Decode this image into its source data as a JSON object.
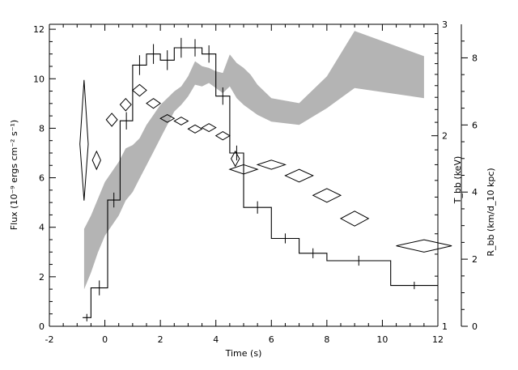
{
  "chart_data": {
    "type": "line",
    "xlabel": "Time (s)",
    "xlim": [
      -2,
      12
    ],
    "x_ticks": [
      -2,
      0,
      2,
      4,
      6,
      8,
      10,
      12
    ],
    "left_axis": {
      "label": "Flux (10⁻⁹ ergs cm⁻² s⁻¹)",
      "ylim": [
        0,
        12.2
      ],
      "ticks": [
        0,
        2,
        4,
        6,
        8,
        10,
        12
      ]
    },
    "tbb_axis": {
      "label": "T_bb (keV)",
      "scale": "log",
      "ylim": [
        1,
        3
      ],
      "ticks": [
        1,
        2,
        3
      ]
    },
    "rbb_axis": {
      "label": "R_bb (km/d_10 kpc)",
      "ylim": [
        0,
        9
      ],
      "ticks": [
        0,
        2,
        4,
        6,
        8
      ]
    },
    "series": [
      {
        "kind": "step",
        "axis": "left",
        "color": "#000000",
        "bins": [
          {
            "x0": -0.8,
            "x1": -0.5,
            "y": 0.35,
            "err": 0.15
          },
          {
            "x0": -0.5,
            "x1": 0.1,
            "y": 1.55,
            "err": 0.3
          },
          {
            "x0": 0.1,
            "x1": 0.55,
            "y": 5.1,
            "err": 0.3
          },
          {
            "x0": 0.55,
            "x1": 1.0,
            "y": 8.3,
            "err": 0.35
          },
          {
            "x0": 1.0,
            "x1": 1.5,
            "y": 10.55,
            "err": 0.4
          },
          {
            "x0": 1.5,
            "x1": 2.0,
            "y": 11.0,
            "err": 0.4
          },
          {
            "x0": 2.0,
            "x1": 2.5,
            "y": 10.75,
            "err": 0.4
          },
          {
            "x0": 2.5,
            "x1": 3.0,
            "y": 11.25,
            "err": 0.4
          },
          {
            "x0": 3.0,
            "x1": 3.5,
            "y": 11.25,
            "err": 0.35
          },
          {
            "x0": 3.5,
            "x1": 4.0,
            "y": 11.0,
            "err": 0.35
          },
          {
            "x0": 4.0,
            "x1": 4.5,
            "y": 9.3,
            "err": 0.35
          },
          {
            "x0": 4.5,
            "x1": 5.0,
            "y": 7.0,
            "err": 0.3
          },
          {
            "x0": 5.0,
            "x1": 6.0,
            "y": 4.8,
            "err": 0.25
          },
          {
            "x0": 6.0,
            "x1": 7.0,
            "y": 3.55,
            "err": 0.2
          },
          {
            "x0": 7.0,
            "x1": 8.0,
            "y": 2.95,
            "err": 0.2
          },
          {
            "x0": 8.0,
            "x1": 10.3,
            "y": 2.65,
            "err": 0.2
          },
          {
            "x0": 10.3,
            "x1": 12.0,
            "y": 1.65,
            "err": 0.15
          }
        ]
      },
      {
        "kind": "band",
        "axis": "rbb",
        "color": "#b4b4b4",
        "x": [
          -0.75,
          -0.5,
          -0.25,
          0.0,
          0.25,
          0.5,
          0.75,
          1.0,
          1.25,
          1.5,
          1.75,
          2.0,
          2.25,
          2.5,
          2.75,
          3.0,
          3.25,
          3.5,
          3.75,
          4.0,
          4.25,
          4.5,
          4.75,
          5.0,
          5.25,
          5.5,
          6.0,
          7.0,
          8.0,
          9.0,
          11.5
        ],
        "upper": [
          2.9,
          3.3,
          3.8,
          4.3,
          4.6,
          4.9,
          5.3,
          5.4,
          5.6,
          6.0,
          6.3,
          6.6,
          6.8,
          7.0,
          7.15,
          7.45,
          7.9,
          7.75,
          7.7,
          7.6,
          7.55,
          8.1,
          7.85,
          7.7,
          7.5,
          7.2,
          6.8,
          6.65,
          7.45,
          8.8,
          8.05
        ],
        "lower": [
          1.1,
          1.6,
          2.2,
          2.7,
          3.0,
          3.3,
          3.75,
          4.0,
          4.4,
          4.8,
          5.2,
          5.6,
          6.0,
          6.4,
          6.6,
          6.85,
          7.2,
          7.15,
          7.25,
          7.1,
          6.95,
          7.15,
          6.8,
          6.6,
          6.45,
          6.3,
          6.1,
          6.0,
          6.5,
          7.1,
          6.8
        ]
      },
      {
        "kind": "diamonds",
        "axis": "tbb",
        "color": "#000000",
        "points": [
          {
            "x": -0.75,
            "y": 1.94,
            "xerr": 0.15,
            "ylo": 1.58,
            "yhi": 2.45
          },
          {
            "x": -0.3,
            "y": 1.83,
            "xerr": 0.15,
            "ylo": 1.77,
            "yhi": 1.89
          },
          {
            "x": 0.25,
            "y": 2.12,
            "xerr": 0.2,
            "ylo": 2.07,
            "yhi": 2.17
          },
          {
            "x": 0.75,
            "y": 2.24,
            "xerr": 0.2,
            "ylo": 2.19,
            "yhi": 2.29
          },
          {
            "x": 1.25,
            "y": 2.36,
            "xerr": 0.25,
            "ylo": 2.31,
            "yhi": 2.41
          },
          {
            "x": 1.75,
            "y": 2.25,
            "xerr": 0.25,
            "ylo": 2.21,
            "yhi": 2.29
          },
          {
            "x": 2.25,
            "y": 2.13,
            "xerr": 0.25,
            "ylo": 2.1,
            "yhi": 2.16
          },
          {
            "x": 2.75,
            "y": 2.11,
            "xerr": 0.25,
            "ylo": 2.08,
            "yhi": 2.14
          },
          {
            "x": 3.25,
            "y": 2.05,
            "xerr": 0.25,
            "ylo": 2.02,
            "yhi": 2.08
          },
          {
            "x": 3.75,
            "y": 2.06,
            "xerr": 0.25,
            "ylo": 2.03,
            "yhi": 2.09
          },
          {
            "x": 4.25,
            "y": 2.0,
            "xerr": 0.25,
            "ylo": 1.97,
            "yhi": 2.03
          },
          {
            "x": 4.7,
            "y": 1.84,
            "xerr": 0.15,
            "ylo": 1.79,
            "yhi": 1.89
          },
          {
            "x": 5.0,
            "y": 1.77,
            "xerr": 0.5,
            "ylo": 1.74,
            "yhi": 1.8
          },
          {
            "x": 6.0,
            "y": 1.8,
            "xerr": 0.5,
            "ylo": 1.77,
            "yhi": 1.83
          },
          {
            "x": 7.0,
            "y": 1.73,
            "xerr": 0.5,
            "ylo": 1.69,
            "yhi": 1.77
          },
          {
            "x": 8.0,
            "y": 1.61,
            "xerr": 0.5,
            "ylo": 1.57,
            "yhi": 1.65
          },
          {
            "x": 9.0,
            "y": 1.48,
            "xerr": 0.5,
            "ylo": 1.44,
            "yhi": 1.52
          },
          {
            "x": 11.5,
            "y": 1.34,
            "xerr": 1.0,
            "ylo": 1.31,
            "yhi": 1.37
          }
        ]
      }
    ]
  }
}
